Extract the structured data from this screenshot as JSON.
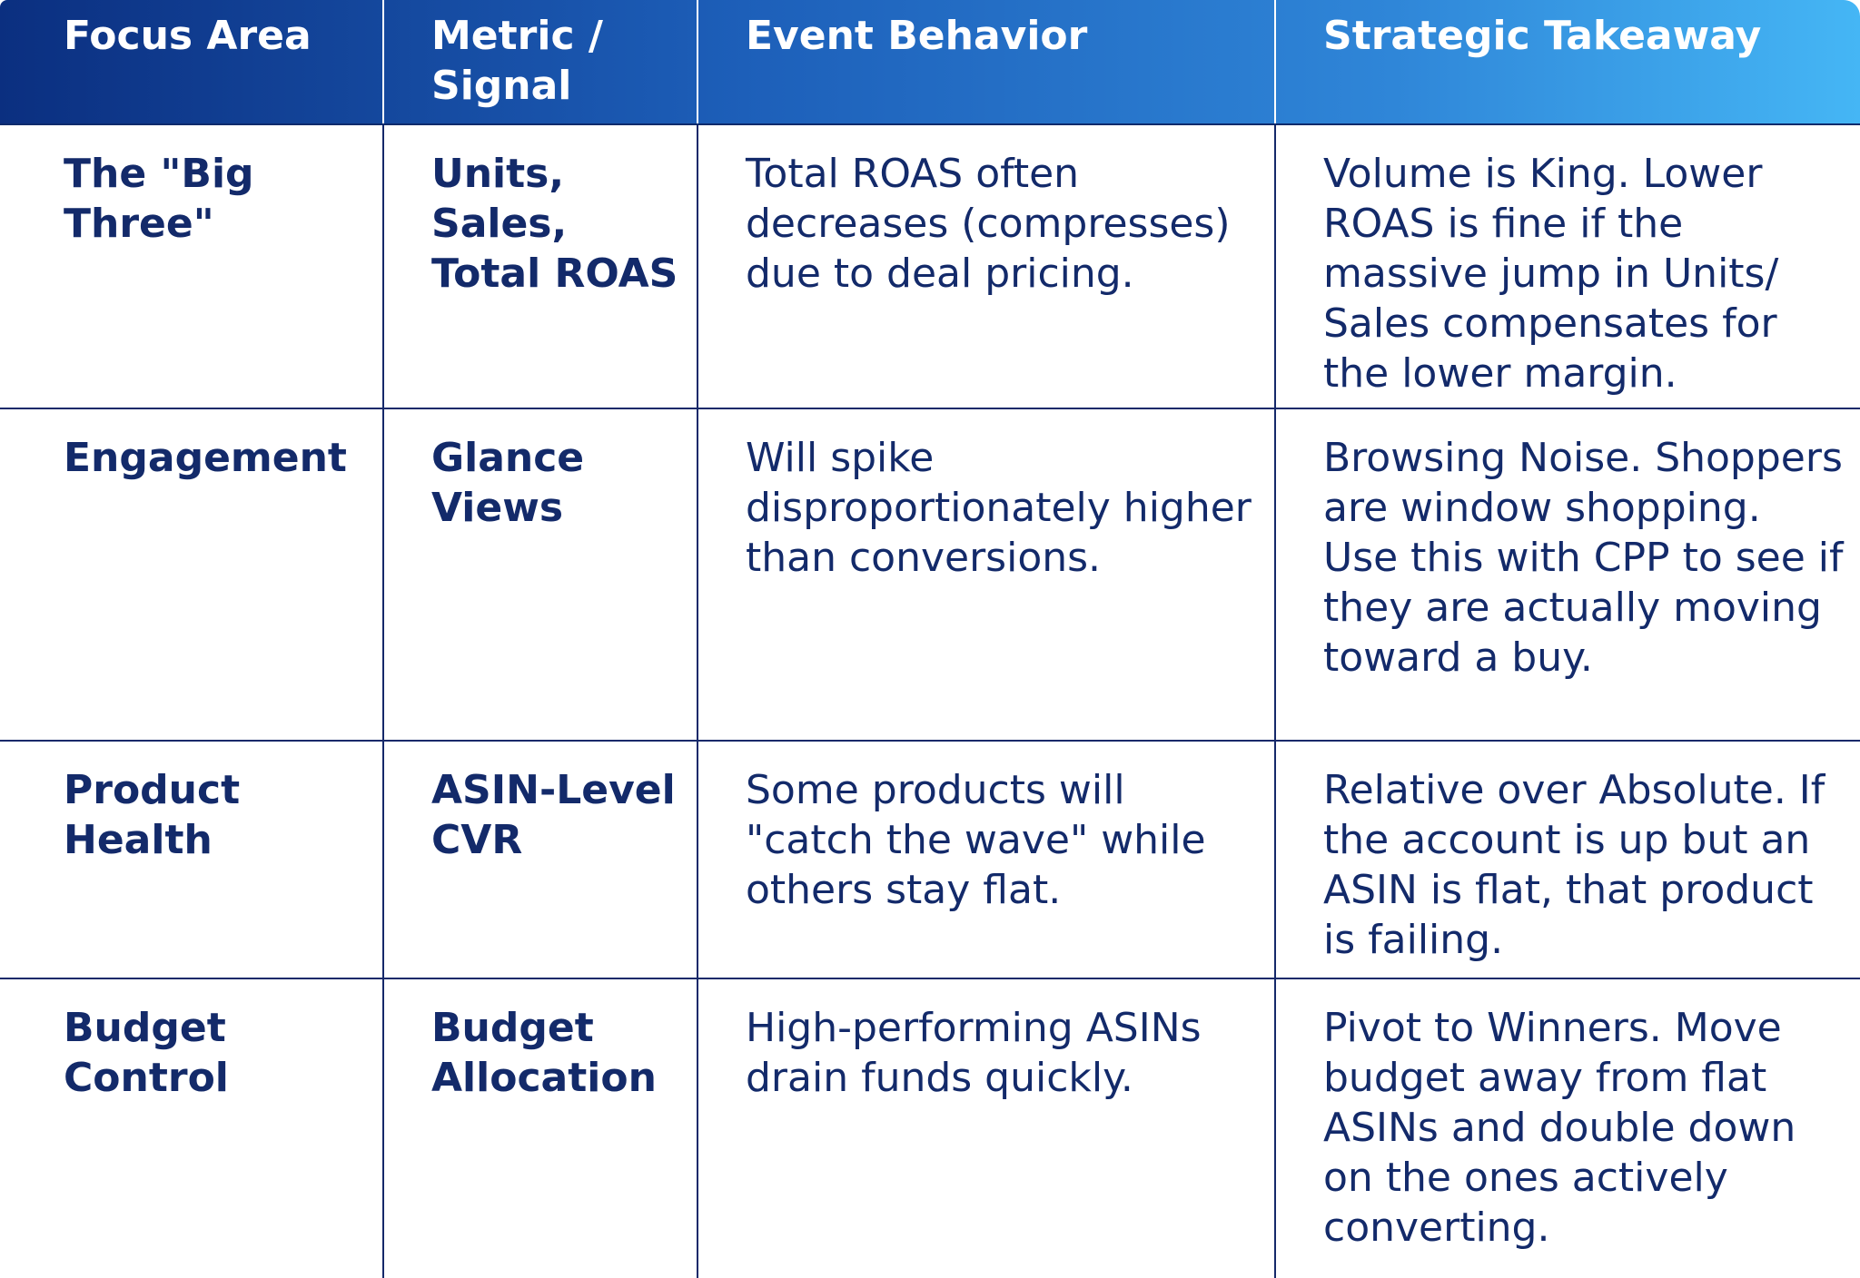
{
  "table": {
    "headers": [
      "Focus Area",
      "Metric / Signal",
      "Event Behavior",
      "Strategic Takeaway"
    ],
    "rows": [
      {
        "focus_area": "The \"Big Three\"",
        "metric": "Units, Sales, Total ROAS",
        "behavior": "Total ROAS often decreases (compresses) due to deal pricing.",
        "takeaway": "Volume is King. Lower ROAS is fine if the massive jump in Units/ Sales compensates for the lower margin."
      },
      {
        "focus_area": "Engagement",
        "metric": "Glance Views",
        "behavior": "Will spike disproportionately higher than conversions.",
        "takeaway": "Browsing Noise. Shoppers are window shopping. Use this with CPP to see if they are actually moving toward a buy."
      },
      {
        "focus_area": "Product Health",
        "metric": "ASIN-Level CVR",
        "behavior": "Some products will \"catch the wave\" while others stay flat.",
        "takeaway": "Relative over Absolute. If the account is up but an ASIN is flat, that product is failing."
      },
      {
        "focus_area": "Budget Control",
        "metric": "Budget Allocation",
        "behavior": "High-performing ASINs drain funds quickly.",
        "takeaway": "Pivot to Winners. Move budget away from flat ASINs and double down on the ones actively converting."
      }
    ]
  },
  "colors": {
    "header_gradient_start": "#0b2f80",
    "header_gradient_end": "#45b6f5",
    "body_text": "#132a6a",
    "grid_lines": "#15296a"
  }
}
